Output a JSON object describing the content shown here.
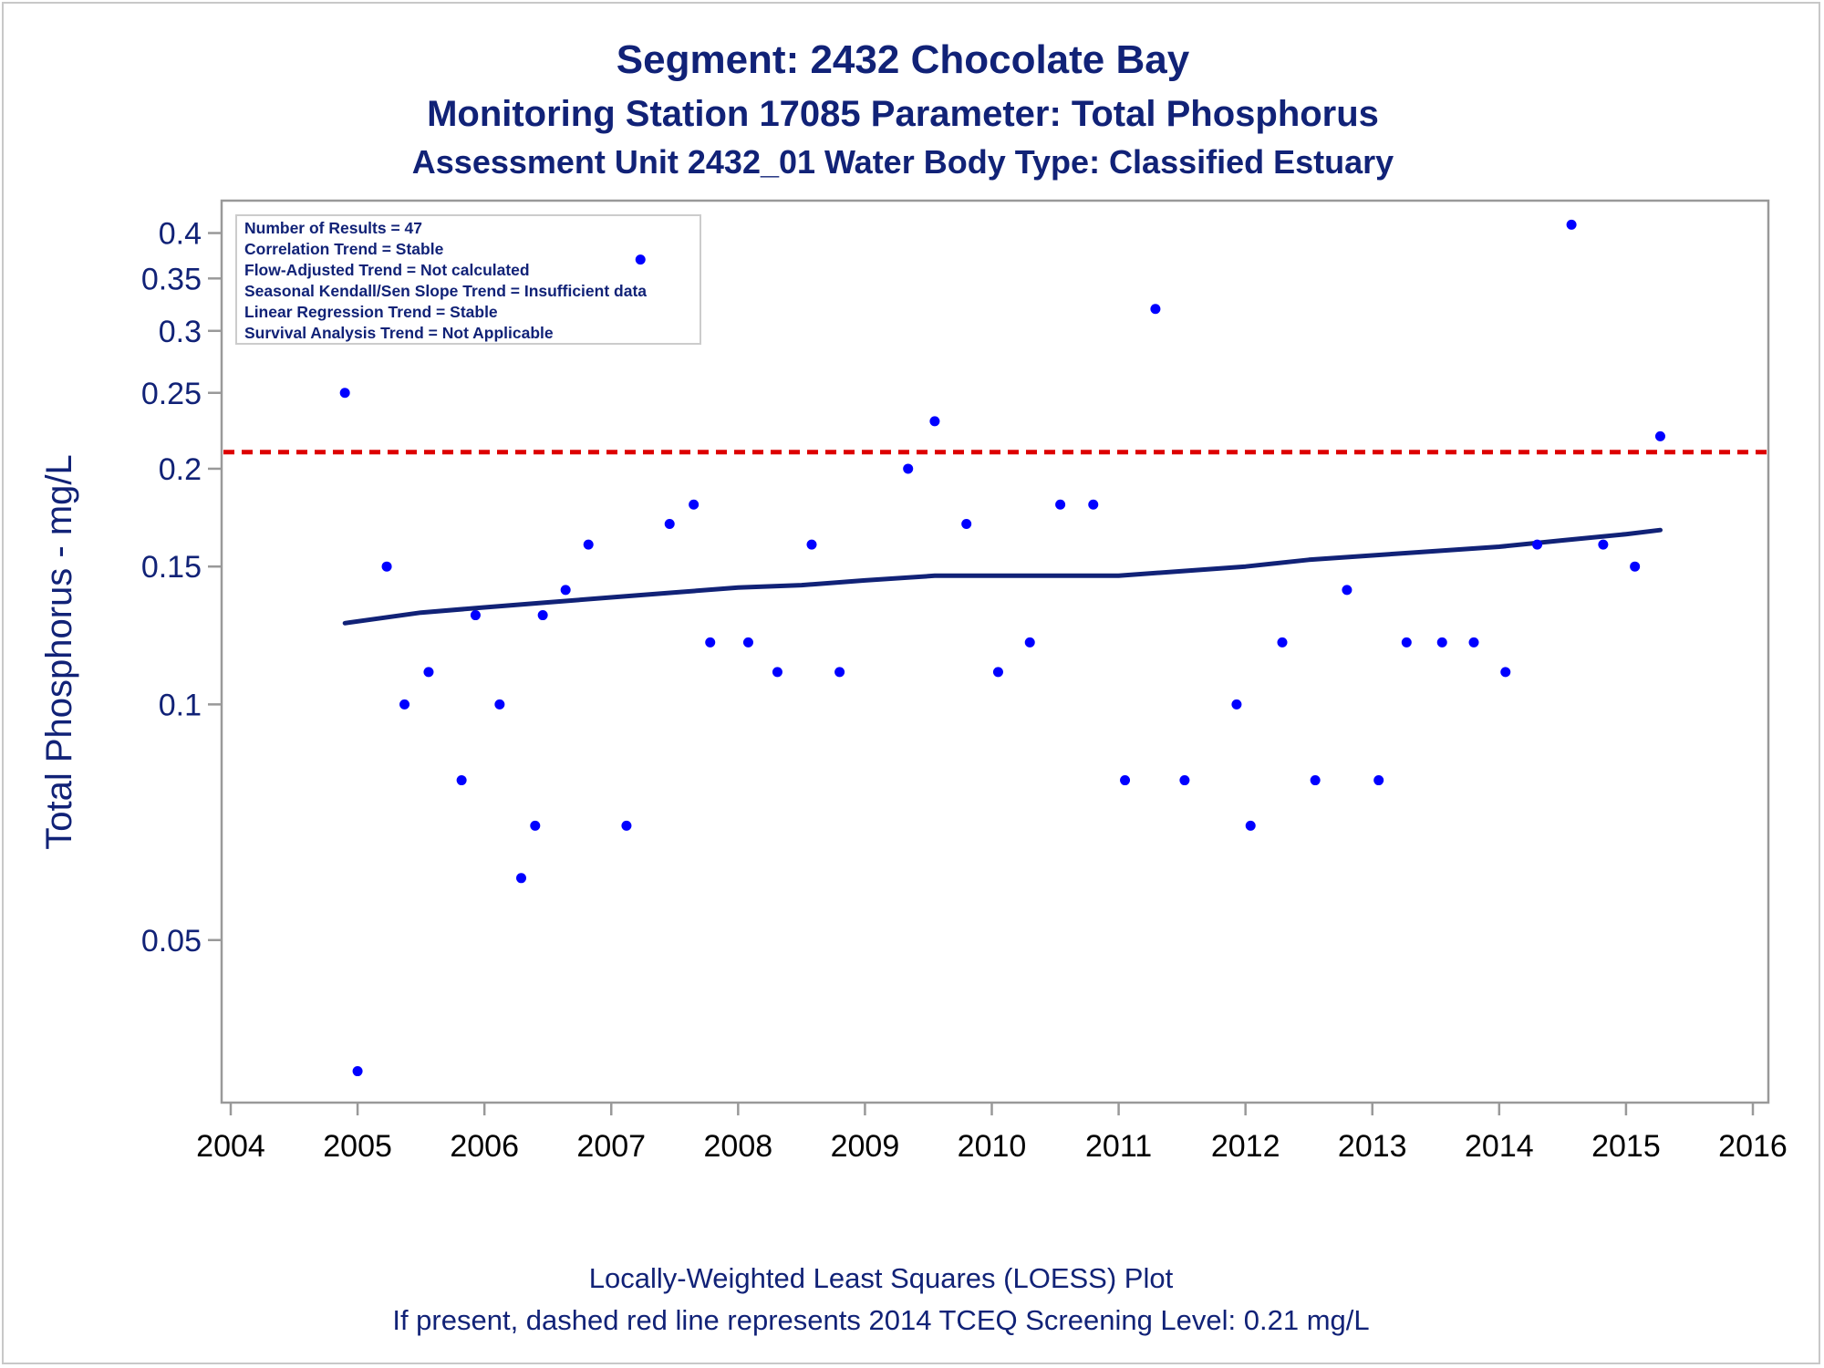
{
  "titles": [
    "Segment: 2432  Chocolate Bay",
    "Monitoring Station 17085 Parameter: Total Phosphorus",
    "Assessment Unit 2432_01   Water Body Type: Classified Estuary"
  ],
  "stats_box": [
    "Number of Results = 47",
    "Correlation Trend = Stable",
    "Flow-Adjusted Trend = Not calculated",
    "Seasonal Kendall/Sen Slope Trend = Insufficient data",
    "Linear Regression Trend = Stable",
    "Survival Analysis Trend = Not Applicable"
  ],
  "footnotes": [
    "Locally-Weighted Least Squares (LOESS) Plot",
    "If present, dashed red line represents 2014 TCEQ Screening Level: 0.21 mg/L"
  ],
  "colors": {
    "text": "#112277",
    "points": "#0000ff",
    "trend_line": "#112277",
    "screening_line": "#dd0000",
    "axis": "#999999"
  },
  "chart_data": {
    "type": "scatter",
    "ylabel": "Total Phosphorus - mg/L",
    "xlabel": "",
    "y_scale": "log",
    "xlim": [
      2004,
      2016
    ],
    "ylim": [
      0.031,
      0.44
    ],
    "x_ticks": [
      2004,
      2005,
      2006,
      2007,
      2008,
      2009,
      2010,
      2011,
      2012,
      2013,
      2014,
      2015,
      2016
    ],
    "y_ticks": [
      0.05,
      0.1,
      0.15,
      0.2,
      0.25,
      0.3,
      0.35,
      0.4
    ],
    "y_tick_labels": [
      "0.05",
      "0.1",
      "0.15",
      "0.2",
      "0.25",
      "0.3",
      "0.35",
      "0.4"
    ],
    "screening_level": 0.21,
    "points": [
      {
        "x": 2004.9,
        "y": 0.25
      },
      {
        "x": 2005.0,
        "y": 0.034
      },
      {
        "x": 2005.23,
        "y": 0.15
      },
      {
        "x": 2005.37,
        "y": 0.1
      },
      {
        "x": 2005.56,
        "y": 0.11
      },
      {
        "x": 2005.82,
        "y": 0.08
      },
      {
        "x": 2005.93,
        "y": 0.13
      },
      {
        "x": 2006.12,
        "y": 0.1
      },
      {
        "x": 2006.29,
        "y": 0.06
      },
      {
        "x": 2006.4,
        "y": 0.07
      },
      {
        "x": 2006.46,
        "y": 0.13
      },
      {
        "x": 2006.64,
        "y": 0.14
      },
      {
        "x": 2006.82,
        "y": 0.16
      },
      {
        "x": 2007.12,
        "y": 0.07
      },
      {
        "x": 2007.23,
        "y": 0.37
      },
      {
        "x": 2007.46,
        "y": 0.17
      },
      {
        "x": 2007.65,
        "y": 0.18
      },
      {
        "x": 2007.78,
        "y": 0.12
      },
      {
        "x": 2008.08,
        "y": 0.12
      },
      {
        "x": 2008.31,
        "y": 0.11
      },
      {
        "x": 2008.58,
        "y": 0.16
      },
      {
        "x": 2008.8,
        "y": 0.11
      },
      {
        "x": 2009.34,
        "y": 0.2
      },
      {
        "x": 2009.55,
        "y": 0.23
      },
      {
        "x": 2009.8,
        "y": 0.17
      },
      {
        "x": 2010.05,
        "y": 0.11
      },
      {
        "x": 2010.3,
        "y": 0.12
      },
      {
        "x": 2010.54,
        "y": 0.18
      },
      {
        "x": 2010.8,
        "y": 0.18
      },
      {
        "x": 2011.05,
        "y": 0.08
      },
      {
        "x": 2011.29,
        "y": 0.32
      },
      {
        "x": 2011.52,
        "y": 0.08
      },
      {
        "x": 2011.93,
        "y": 0.1
      },
      {
        "x": 2012.04,
        "y": 0.07
      },
      {
        "x": 2012.29,
        "y": 0.12
      },
      {
        "x": 2012.55,
        "y": 0.08
      },
      {
        "x": 2012.8,
        "y": 0.14
      },
      {
        "x": 2013.05,
        "y": 0.08
      },
      {
        "x": 2013.27,
        "y": 0.12
      },
      {
        "x": 2013.55,
        "y": 0.12
      },
      {
        "x": 2013.8,
        "y": 0.12
      },
      {
        "x": 2014.05,
        "y": 0.11
      },
      {
        "x": 2014.3,
        "y": 0.16
      },
      {
        "x": 2014.57,
        "y": 0.41
      },
      {
        "x": 2014.82,
        "y": 0.16
      },
      {
        "x": 2015.07,
        "y": 0.15
      },
      {
        "x": 2015.27,
        "y": 0.22
      }
    ],
    "loess": [
      {
        "x": 2004.9,
        "y": 0.127
      },
      {
        "x": 2005.5,
        "y": 0.131
      },
      {
        "x": 2006.0,
        "y": 0.133
      },
      {
        "x": 2006.5,
        "y": 0.135
      },
      {
        "x": 2007.0,
        "y": 0.137
      },
      {
        "x": 2007.5,
        "y": 0.139
      },
      {
        "x": 2008.0,
        "y": 0.141
      },
      {
        "x": 2008.5,
        "y": 0.142
      },
      {
        "x": 2009.0,
        "y": 0.144
      },
      {
        "x": 2009.55,
        "y": 0.146
      },
      {
        "x": 2010.0,
        "y": 0.146
      },
      {
        "x": 2010.5,
        "y": 0.146
      },
      {
        "x": 2011.0,
        "y": 0.146
      },
      {
        "x": 2011.5,
        "y": 0.148
      },
      {
        "x": 2012.0,
        "y": 0.15
      },
      {
        "x": 2012.5,
        "y": 0.153
      },
      {
        "x": 2013.0,
        "y": 0.155
      },
      {
        "x": 2013.5,
        "y": 0.157
      },
      {
        "x": 2014.0,
        "y": 0.159
      },
      {
        "x": 2014.5,
        "y": 0.162
      },
      {
        "x": 2015.0,
        "y": 0.165
      },
      {
        "x": 2015.27,
        "y": 0.167
      }
    ]
  }
}
